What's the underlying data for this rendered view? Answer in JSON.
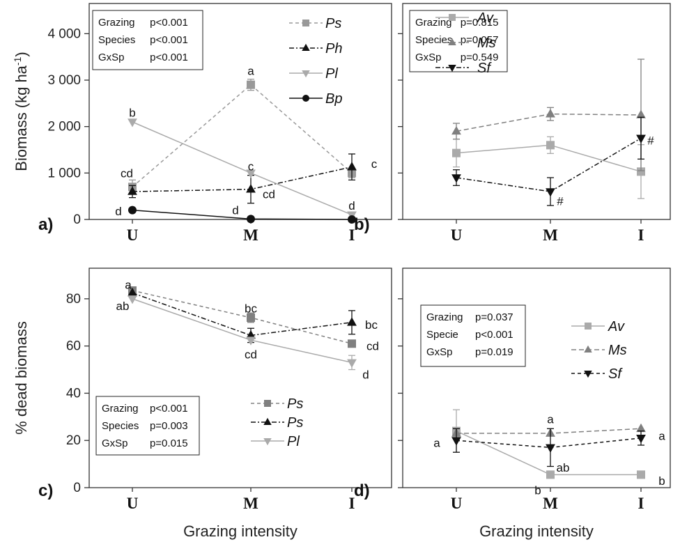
{
  "figure": {
    "x_axis_label": "Grazing intensity",
    "colors": {
      "light": "#aaaaaa",
      "mid": "#808080",
      "dark": "#111111",
      "axis": "#333333"
    }
  },
  "chart_data": [
    {
      "id": "a",
      "type": "line",
      "panel_label": "a)",
      "ylabel": "Biomass (kg ha",
      "ylabel_sup": "-1",
      "ylabel_end": ")",
      "categories": [
        "U",
        "M",
        "I"
      ],
      "ylim": [
        0,
        4500
      ],
      "yticks": [
        0,
        1000,
        2000,
        3000,
        4000
      ],
      "ytick_labels": [
        "0",
        "1 000",
        "2 000",
        "3 000",
        "4 000"
      ],
      "xlabel": "",
      "stats": [
        [
          "Grazing",
          "p<0.001"
        ],
        [
          "Species",
          "p<0.001"
        ],
        [
          "GxSp",
          "p<0.001"
        ]
      ],
      "legend_position": "top-right",
      "series": [
        {
          "name": "Ps",
          "values": [
            700,
            2900,
            1000
          ],
          "err": [
            150,
            120,
            100
          ],
          "marker": "square",
          "color": "#999999",
          "dash": "5,4"
        },
        {
          "name": "Ph",
          "values": [
            600,
            650,
            1130
          ],
          "err": [
            130,
            300,
            280
          ],
          "marker": "triangle-up",
          "color": "#111111",
          "dash": "7,3,2,3"
        },
        {
          "name": "Pl",
          "values": [
            2100,
            1000,
            100
          ],
          "err": [
            0,
            0,
            0
          ],
          "marker": "triangle-down",
          "color": "#aaaaaa",
          "dash": ""
        },
        {
          "name": "Bp",
          "values": [
            200,
            10,
            0
          ],
          "err": [
            0,
            0,
            0
          ],
          "marker": "circle",
          "color": "#111111",
          "dash": ""
        }
      ],
      "labels": [
        {
          "text": "cd",
          "cat": 0,
          "y": 1000,
          "dx": -8
        },
        {
          "text": "d",
          "cat": 0,
          "y": 180,
          "dx": -20
        },
        {
          "text": "b",
          "cat": 0,
          "y": 2300,
          "dx": 0
        },
        {
          "text": "a",
          "cat": 1,
          "y": 3200,
          "dx": 0
        },
        {
          "text": "c",
          "cat": 1,
          "y": 1150,
          "dx": 0
        },
        {
          "text": "cd",
          "cat": 1,
          "y": 550,
          "dx": 26
        },
        {
          "text": "d",
          "cat": 1,
          "y": 200,
          "dx": -22
        },
        {
          "text": "c",
          "cat": 2,
          "y": 1200,
          "dx": 32
        },
        {
          "text": "d",
          "cat": 2,
          "y": 300,
          "dx": 0
        }
      ]
    },
    {
      "id": "b",
      "type": "line",
      "panel_label": "b)",
      "ylabel": "",
      "categories": [
        "U",
        "M",
        "I"
      ],
      "ylim": [
        0,
        4500
      ],
      "yticks": [
        0,
        1000,
        2000,
        3000,
        4000
      ],
      "ytick_labels": [
        "",
        "",
        "",
        "",
        ""
      ],
      "xlabel": "",
      "stats": [
        [
          "Grazing",
          "p=0.815"
        ],
        [
          "Species",
          "p=0.057"
        ],
        [
          "GxSp",
          "p=0.549"
        ]
      ],
      "legend_position": "top-right",
      "series": [
        {
          "name": "Av",
          "values": [
            1430,
            1600,
            1030
          ],
          "err": [
            300,
            180,
            580
          ],
          "marker": "square",
          "color": "#aaaaaa",
          "dash": ""
        },
        {
          "name": "Ms",
          "values": [
            1900,
            2270,
            2250
          ],
          "err": [
            170,
            140,
            1200
          ],
          "marker": "triangle-up",
          "color": "#808080",
          "dash": "7,4"
        },
        {
          "name": "Sf",
          "values": [
            900,
            600,
            1750
          ],
          "err": [
            170,
            300,
            450
          ],
          "marker": "triangle-down",
          "color": "#111111",
          "dash": "7,3,2,3"
        }
      ],
      "labels": [
        {
          "text": "#",
          "cat": 1,
          "y": 400,
          "dx": 14
        },
        {
          "text": "#",
          "cat": 2,
          "y": 1700,
          "dx": 14
        }
      ]
    },
    {
      "id": "c",
      "type": "line",
      "panel_label": "c)",
      "ylabel": "% dead biomass",
      "categories": [
        "U",
        "M",
        "I"
      ],
      "ylim": [
        0,
        90
      ],
      "yticks": [
        0,
        20,
        40,
        60,
        80
      ],
      "ytick_labels": [
        "0",
        "20",
        "40",
        "60",
        "80"
      ],
      "xlabel": "Grazing intensity",
      "stats": [
        [
          "Grazing",
          "p<0.001"
        ],
        [
          "Species",
          "p=0.003"
        ],
        [
          "GxSp",
          "p=0.015"
        ]
      ],
      "legend_position": "bottom-center",
      "series": [
        {
          "name": "Ps",
          "values": [
            83.5,
            72,
            61
          ],
          "err": [
            0,
            2,
            0
          ],
          "marker": "square",
          "color": "#808080",
          "dash": "5,4"
        },
        {
          "name": "Ps",
          "values": [
            82.5,
            64.5,
            70
          ],
          "err": [
            0,
            3,
            5
          ],
          "marker": "triangle-up",
          "color": "#111111",
          "dash": "7,3,2,3"
        },
        {
          "name": "Pl",
          "values": [
            80,
            62.5,
            53
          ],
          "err": [
            0,
            0,
            3
          ],
          "marker": "triangle-down",
          "color": "#aaaaaa",
          "dash": ""
        }
      ],
      "labels": [
        {
          "text": "a",
          "cat": 0,
          "y": 86,
          "dx": -6
        },
        {
          "text": "ab",
          "cat": 0,
          "y": 77,
          "dx": -14
        },
        {
          "text": "bc",
          "cat": 1,
          "y": 76,
          "dx": 0
        },
        {
          "text": "cd",
          "cat": 1,
          "y": 56.5,
          "dx": 0
        },
        {
          "text": "bc",
          "cat": 2,
          "y": 69,
          "dx": 28
        },
        {
          "text": "cd",
          "cat": 2,
          "y": 60,
          "dx": 30
        },
        {
          "text": "d",
          "cat": 2,
          "y": 48,
          "dx": 20
        }
      ]
    },
    {
      "id": "d",
      "type": "line",
      "panel_label": "d)",
      "ylabel": "",
      "categories": [
        "U",
        "M",
        "I"
      ],
      "ylim": [
        0,
        90
      ],
      "yticks": [
        0,
        20,
        40,
        60,
        80
      ],
      "ytick_labels": [
        "",
        "",
        "",
        "",
        ""
      ],
      "xlabel": "Grazing intensity",
      "stats": [
        [
          "Grazing",
          "p=0.037"
        ],
        [
          "Specie",
          "p<0.001"
        ],
        [
          "GxSp",
          "p=0.019"
        ]
      ],
      "legend_position": "top-right",
      "series": [
        {
          "name": "Av",
          "values": [
            24,
            5.5,
            5.5
          ],
          "err": [
            9,
            0,
            0
          ],
          "marker": "square",
          "color": "#aaaaaa",
          "dash": ""
        },
        {
          "name": "Ms",
          "values": [
            23,
            23,
            25
          ],
          "err": [
            0,
            0,
            0
          ],
          "marker": "triangle-up",
          "color": "#808080",
          "dash": "7,4"
        },
        {
          "name": "Sf",
          "values": [
            20,
            17,
            21
          ],
          "err": [
            5,
            8,
            3
          ],
          "marker": "triangle-down",
          "color": "#111111",
          "dash": "5,4"
        }
      ],
      "labels": [
        {
          "text": "a",
          "cat": 0,
          "y": 19,
          "dx": -28
        },
        {
          "text": "a",
          "cat": 1,
          "y": 29,
          "dx": 0
        },
        {
          "text": "ab",
          "cat": 1,
          "y": 8.5,
          "dx": 18
        },
        {
          "text": "b",
          "cat": 1,
          "y": -1,
          "dx": -18
        },
        {
          "text": "a",
          "cat": 2,
          "y": 22,
          "dx": 30
        },
        {
          "text": "b",
          "cat": 2,
          "y": 3,
          "dx": 30
        }
      ]
    }
  ]
}
